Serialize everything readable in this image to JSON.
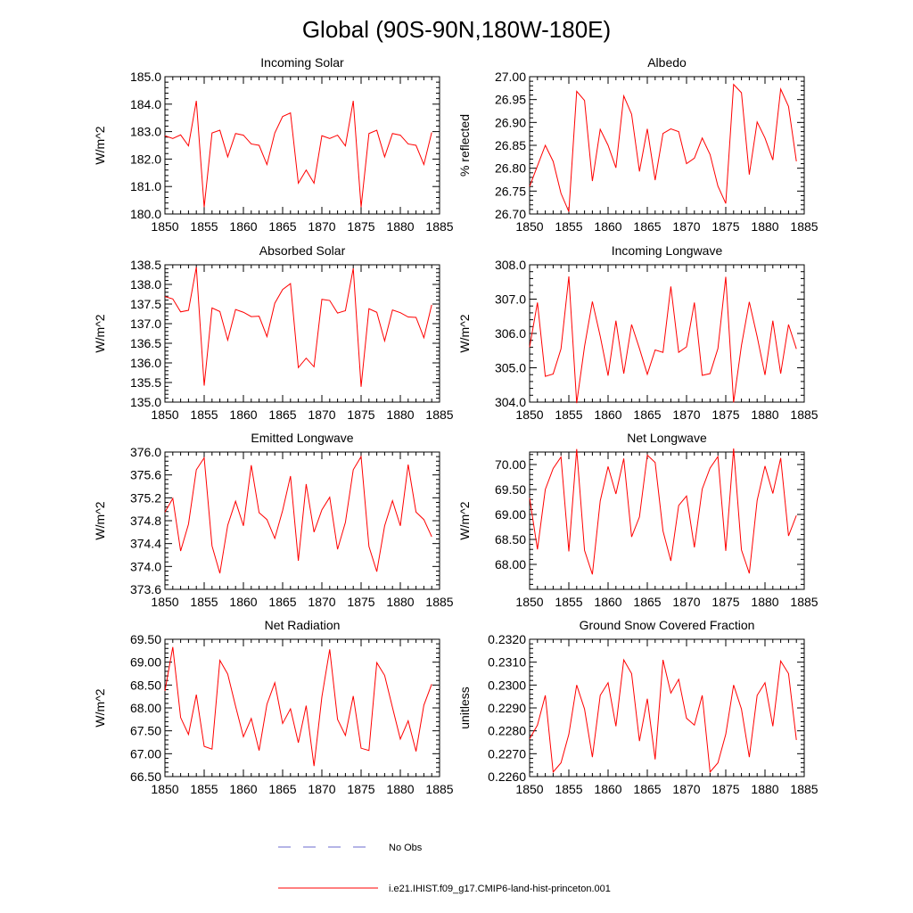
{
  "figure": {
    "title": "Global (90S-90N,180W-180E)",
    "legend": [
      {
        "label": "No Obs",
        "color": "#6a6acd",
        "style": "dashed"
      },
      {
        "label": "i.e21.IHIST.f09_g17.CMIP6-land-hist-princeton.001",
        "color": "#ff0000",
        "style": "solid"
      }
    ]
  },
  "chart_data": [
    {
      "type": "line",
      "title": "Incoming Solar",
      "ylabel": "W/m^2",
      "xlim": [
        1850,
        1885
      ],
      "ylim": [
        180.0,
        185.0
      ],
      "xticks": [
        1850,
        1855,
        1860,
        1865,
        1870,
        1875,
        1880,
        1885
      ],
      "yticks": [
        "180.0",
        "181.0",
        "182.0",
        "183.0",
        "184.0",
        "185.0"
      ],
      "series": [
        {
          "color": "#ff0000",
          "x": [
            1850,
            1851,
            1852,
            1853,
            1854,
            1855,
            1856,
            1857,
            1858,
            1859,
            1860,
            1861,
            1862,
            1863,
            1864,
            1865,
            1866,
            1867,
            1868,
            1869,
            1870,
            1871,
            1872,
            1873,
            1874,
            1875,
            1876,
            1877,
            1878,
            1879,
            1880,
            1881,
            1882,
            1883,
            1884
          ],
          "y": [
            182.85,
            182.75,
            182.88,
            182.48,
            184.12,
            180.25,
            182.95,
            183.05,
            182.08,
            182.93,
            182.87,
            182.55,
            182.5,
            181.8,
            182.95,
            183.55,
            183.68,
            181.12,
            181.6,
            181.12,
            182.85,
            182.75,
            182.87,
            182.48,
            184.12,
            180.25,
            182.93,
            183.05,
            182.08,
            182.93,
            182.87,
            182.55,
            182.5,
            181.8,
            182.97
          ]
        }
      ]
    },
    {
      "type": "line",
      "title": "Albedo",
      "ylabel": "% reflected",
      "xlim": [
        1850,
        1885
      ],
      "ylim": [
        26.7,
        27.0
      ],
      "xticks": [
        1850,
        1855,
        1860,
        1865,
        1870,
        1875,
        1880,
        1885
      ],
      "yticks": [
        "26.70",
        "26.75",
        "26.80",
        "26.85",
        "26.90",
        "26.95",
        "27.00"
      ],
      "series": [
        {
          "color": "#ff0000",
          "x": [
            1850,
            1851,
            1852,
            1853,
            1854,
            1855,
            1856,
            1857,
            1858,
            1859,
            1860,
            1861,
            1862,
            1863,
            1864,
            1865,
            1866,
            1867,
            1868,
            1869,
            1870,
            1871,
            1872,
            1873,
            1874,
            1875,
            1876,
            1877,
            1878,
            1879,
            1880,
            1881,
            1882,
            1883,
            1884
          ],
          "y": [
            26.76,
            26.805,
            26.85,
            26.815,
            26.745,
            26.705,
            26.968,
            26.948,
            26.772,
            26.885,
            26.85,
            26.801,
            26.958,
            26.918,
            26.793,
            26.886,
            26.774,
            26.876,
            26.886,
            26.88,
            26.81,
            26.822,
            26.866,
            26.83,
            26.761,
            26.723,
            26.983,
            26.965,
            26.786,
            26.901,
            26.866,
            26.818,
            26.973,
            26.935,
            26.815
          ]
        }
      ]
    },
    {
      "type": "line",
      "title": "Absorbed Solar",
      "ylabel": "W/m^2",
      "xlim": [
        1850,
        1885
      ],
      "ylim": [
        135.0,
        138.5
      ],
      "xticks": [
        1850,
        1855,
        1860,
        1865,
        1870,
        1875,
        1880,
        1885
      ],
      "yticks": [
        "135.0",
        "135.5",
        "136.0",
        "136.5",
        "137.0",
        "137.5",
        "138.0",
        "138.5"
      ],
      "series": [
        {
          "color": "#ff0000",
          "x": [
            1850,
            1851,
            1852,
            1853,
            1854,
            1855,
            1856,
            1857,
            1858,
            1859,
            1860,
            1861,
            1862,
            1863,
            1864,
            1865,
            1866,
            1867,
            1868,
            1869,
            1870,
            1871,
            1872,
            1873,
            1874,
            1875,
            1876,
            1877,
            1878,
            1879,
            1880,
            1881,
            1882,
            1883,
            1884
          ],
          "y": [
            137.69,
            137.63,
            137.3,
            137.34,
            138.44,
            135.42,
            137.4,
            137.31,
            136.58,
            137.36,
            137.29,
            137.18,
            137.19,
            136.67,
            137.52,
            137.87,
            138.02,
            135.88,
            136.12,
            135.9,
            137.62,
            137.59,
            137.27,
            137.33,
            138.41,
            135.39,
            137.38,
            137.29,
            136.56,
            137.35,
            137.28,
            137.17,
            137.16,
            136.64,
            137.48
          ]
        }
      ]
    },
    {
      "type": "line",
      "title": "Incoming Longwave",
      "ylabel": "W/m^2",
      "xlim": [
        1850,
        1885
      ],
      "ylim": [
        304.0,
        308.0
      ],
      "xticks": [
        1850,
        1855,
        1860,
        1865,
        1870,
        1875,
        1880,
        1885
      ],
      "yticks": [
        "304.0",
        "305.0",
        "306.0",
        "307.0",
        "308.0"
      ],
      "series": [
        {
          "color": "#ff0000",
          "x": [
            1850,
            1851,
            1852,
            1853,
            1854,
            1855,
            1856,
            1857,
            1858,
            1859,
            1860,
            1861,
            1862,
            1863,
            1864,
            1865,
            1866,
            1867,
            1868,
            1869,
            1870,
            1871,
            1872,
            1873,
            1874,
            1875,
            1876,
            1877,
            1878,
            1879,
            1880,
            1881,
            1882,
            1883,
            1884
          ],
          "y": [
            305.6,
            306.9,
            304.75,
            304.82,
            305.55,
            307.66,
            303.97,
            305.62,
            306.93,
            305.92,
            304.77,
            306.37,
            304.83,
            306.26,
            305.56,
            304.81,
            305.52,
            305.45,
            307.37,
            305.45,
            305.61,
            306.9,
            304.78,
            304.83,
            305.56,
            307.65,
            303.99,
            305.65,
            306.92,
            305.91,
            304.79,
            306.37,
            304.83,
            306.26,
            305.55
          ]
        }
      ]
    },
    {
      "type": "line",
      "title": "Emitted Longwave",
      "ylabel": "W/m^2",
      "xlim": [
        1850,
        1885
      ],
      "ylim": [
        373.6,
        376.0
      ],
      "xticks": [
        1850,
        1855,
        1860,
        1865,
        1870,
        1875,
        1880,
        1885
      ],
      "yticks": [
        "373.6",
        "374.0",
        "374.4",
        "374.8",
        "375.2",
        "375.6",
        "376.0"
      ],
      "series": [
        {
          "color": "#ff0000",
          "x": [
            1850,
            1851,
            1852,
            1853,
            1854,
            1855,
            1856,
            1857,
            1858,
            1859,
            1860,
            1861,
            1862,
            1863,
            1864,
            1865,
            1866,
            1867,
            1868,
            1869,
            1870,
            1871,
            1872,
            1873,
            1874,
            1875,
            1876,
            1877,
            1878,
            1879,
            1880,
            1881,
            1882,
            1883,
            1884
          ],
          "y": [
            374.95,
            375.19,
            374.27,
            374.74,
            375.69,
            375.9,
            374.36,
            373.88,
            374.72,
            375.14,
            374.71,
            375.77,
            374.94,
            374.82,
            374.49,
            374.98,
            375.58,
            374.1,
            375.44,
            374.6,
            374.99,
            375.21,
            374.3,
            374.77,
            375.69,
            375.92,
            374.35,
            373.91,
            374.71,
            375.15,
            374.71,
            375.78,
            374.95,
            374.82,
            374.52
          ]
        }
      ]
    },
    {
      "type": "line",
      "title": "Net Longwave",
      "ylabel": "W/m^2",
      "xlim": [
        1850,
        1885
      ],
      "ylim": [
        67.5,
        70.25
      ],
      "xticks": [
        1850,
        1855,
        1860,
        1865,
        1870,
        1875,
        1880,
        1885
      ],
      "yticks": [
        "68.00",
        "68.50",
        "69.00",
        "69.50",
        "70.00"
      ],
      "series": [
        {
          "color": "#ff0000",
          "x": [
            1850,
            1851,
            1852,
            1853,
            1854,
            1855,
            1856,
            1857,
            1858,
            1859,
            1860,
            1861,
            1862,
            1863,
            1864,
            1865,
            1866,
            1867,
            1868,
            1869,
            1870,
            1871,
            1872,
            1873,
            1874,
            1875,
            1876,
            1877,
            1878,
            1879,
            1880,
            1881,
            1882,
            1883,
            1884
          ],
          "y": [
            69.33,
            68.3,
            69.5,
            69.92,
            70.15,
            68.26,
            70.31,
            68.28,
            67.8,
            69.27,
            69.96,
            69.41,
            70.12,
            68.55,
            68.95,
            70.19,
            70.04,
            68.67,
            68.07,
            69.18,
            69.37,
            68.34,
            69.51,
            69.93,
            70.16,
            68.27,
            70.32,
            68.29,
            67.82,
            69.28,
            69.97,
            69.42,
            70.13,
            68.57,
            68.98
          ]
        }
      ]
    },
    {
      "type": "line",
      "title": "Net Radiation",
      "ylabel": "W/m^2",
      "xlim": [
        1850,
        1885
      ],
      "ylim": [
        66.5,
        69.5
      ],
      "xticks": [
        1850,
        1855,
        1860,
        1865,
        1870,
        1875,
        1880,
        1885
      ],
      "yticks": [
        "66.50",
        "67.00",
        "67.50",
        "68.00",
        "68.50",
        "69.00",
        "69.50"
      ],
      "series": [
        {
          "color": "#ff0000",
          "x": [
            1850,
            1851,
            1852,
            1853,
            1854,
            1855,
            1856,
            1857,
            1858,
            1859,
            1860,
            1861,
            1862,
            1863,
            1864,
            1865,
            1866,
            1867,
            1868,
            1869,
            1870,
            1871,
            1872,
            1873,
            1874,
            1875,
            1876,
            1877,
            1878,
            1879,
            1880,
            1881,
            1882,
            1883,
            1884
          ],
          "y": [
            68.37,
            69.33,
            67.79,
            67.42,
            68.29,
            67.16,
            67.1,
            69.04,
            68.74,
            68.04,
            67.37,
            67.77,
            67.07,
            68.08,
            68.55,
            67.66,
            67.98,
            67.24,
            68.05,
            66.73,
            68.24,
            69.28,
            67.75,
            67.4,
            68.26,
            67.12,
            67.07,
            68.99,
            68.71,
            68.01,
            67.32,
            67.72,
            67.05,
            68.06,
            68.52
          ]
        }
      ]
    },
    {
      "type": "line",
      "title": "Ground Snow Covered Fraction",
      "ylabel": "unitless",
      "xlim": [
        1850,
        1885
      ],
      "ylim": [
        0.226,
        0.232
      ],
      "xticks": [
        1850,
        1855,
        1860,
        1865,
        1870,
        1875,
        1880,
        1885
      ],
      "yticks": [
        "0.2260",
        "0.2270",
        "0.2280",
        "0.2290",
        "0.2300",
        "0.2310",
        "0.2320"
      ],
      "series": [
        {
          "color": "#ff0000",
          "x": [
            1850,
            1851,
            1852,
            1853,
            1854,
            1855,
            1856,
            1857,
            1858,
            1859,
            1860,
            1861,
            1862,
            1863,
            1864,
            1865,
            1866,
            1867,
            1868,
            1869,
            1870,
            1871,
            1872,
            1873,
            1874,
            1875,
            1876,
            1877,
            1878,
            1879,
            1880,
            1881,
            1882,
            1883,
            1884
          ],
          "y": [
            0.22765,
            0.22825,
            0.22955,
            0.2262,
            0.2266,
            0.22785,
            0.23,
            0.22895,
            0.22685,
            0.22955,
            0.2301,
            0.2282,
            0.2311,
            0.2305,
            0.22755,
            0.2294,
            0.22675,
            0.2311,
            0.22965,
            0.23025,
            0.22855,
            0.22825,
            0.22955,
            0.2262,
            0.2266,
            0.22785,
            0.23,
            0.22895,
            0.22685,
            0.22955,
            0.2301,
            0.2282,
            0.23105,
            0.2305,
            0.2276
          ]
        }
      ]
    }
  ]
}
